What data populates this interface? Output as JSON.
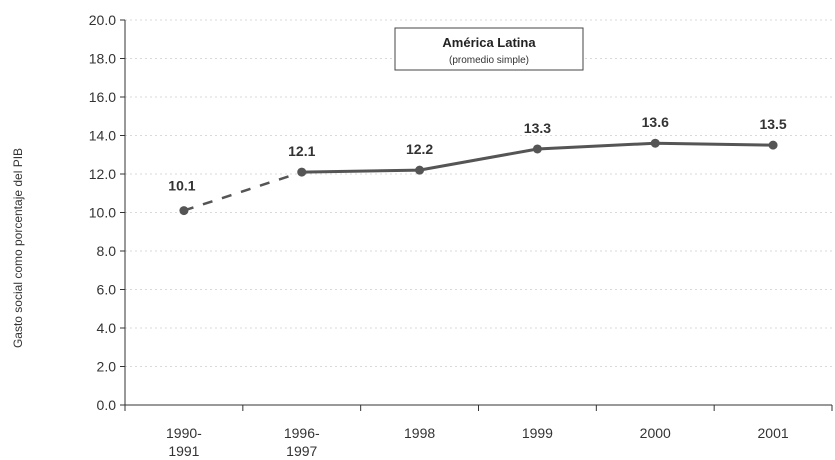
{
  "chart_data": {
    "type": "line",
    "categories": [
      "1990-\n1991",
      "1996-\n1997",
      "1998",
      "1999",
      "2000",
      "2001"
    ],
    "series": [
      {
        "values": [
          10.1,
          12.1,
          12.2,
          13.3,
          13.6,
          13.5
        ]
      }
    ],
    "data_labels": [
      "10.1",
      "12.1",
      "12.2",
      "13.3",
      "13.6",
      "13.5"
    ],
    "yticks": [
      "0.0",
      "2.0",
      "4.0",
      "6.0",
      "8.0",
      "10.0",
      "12.0",
      "14.0",
      "16.0",
      "18.0",
      "20.0"
    ],
    "ylim": [
      0,
      20
    ],
    "ylabel": "Gasto social como porcentaje del PIB",
    "title": "",
    "legend": {
      "title": "América Latina",
      "subtitle": "(promedio simple)",
      "placement": "top-center"
    },
    "grid": true,
    "first_segment_style": "dashed",
    "colors": {
      "line": "#555555",
      "marker": "#555555",
      "grid": "#d9d9d9",
      "axis": "#333333"
    }
  }
}
